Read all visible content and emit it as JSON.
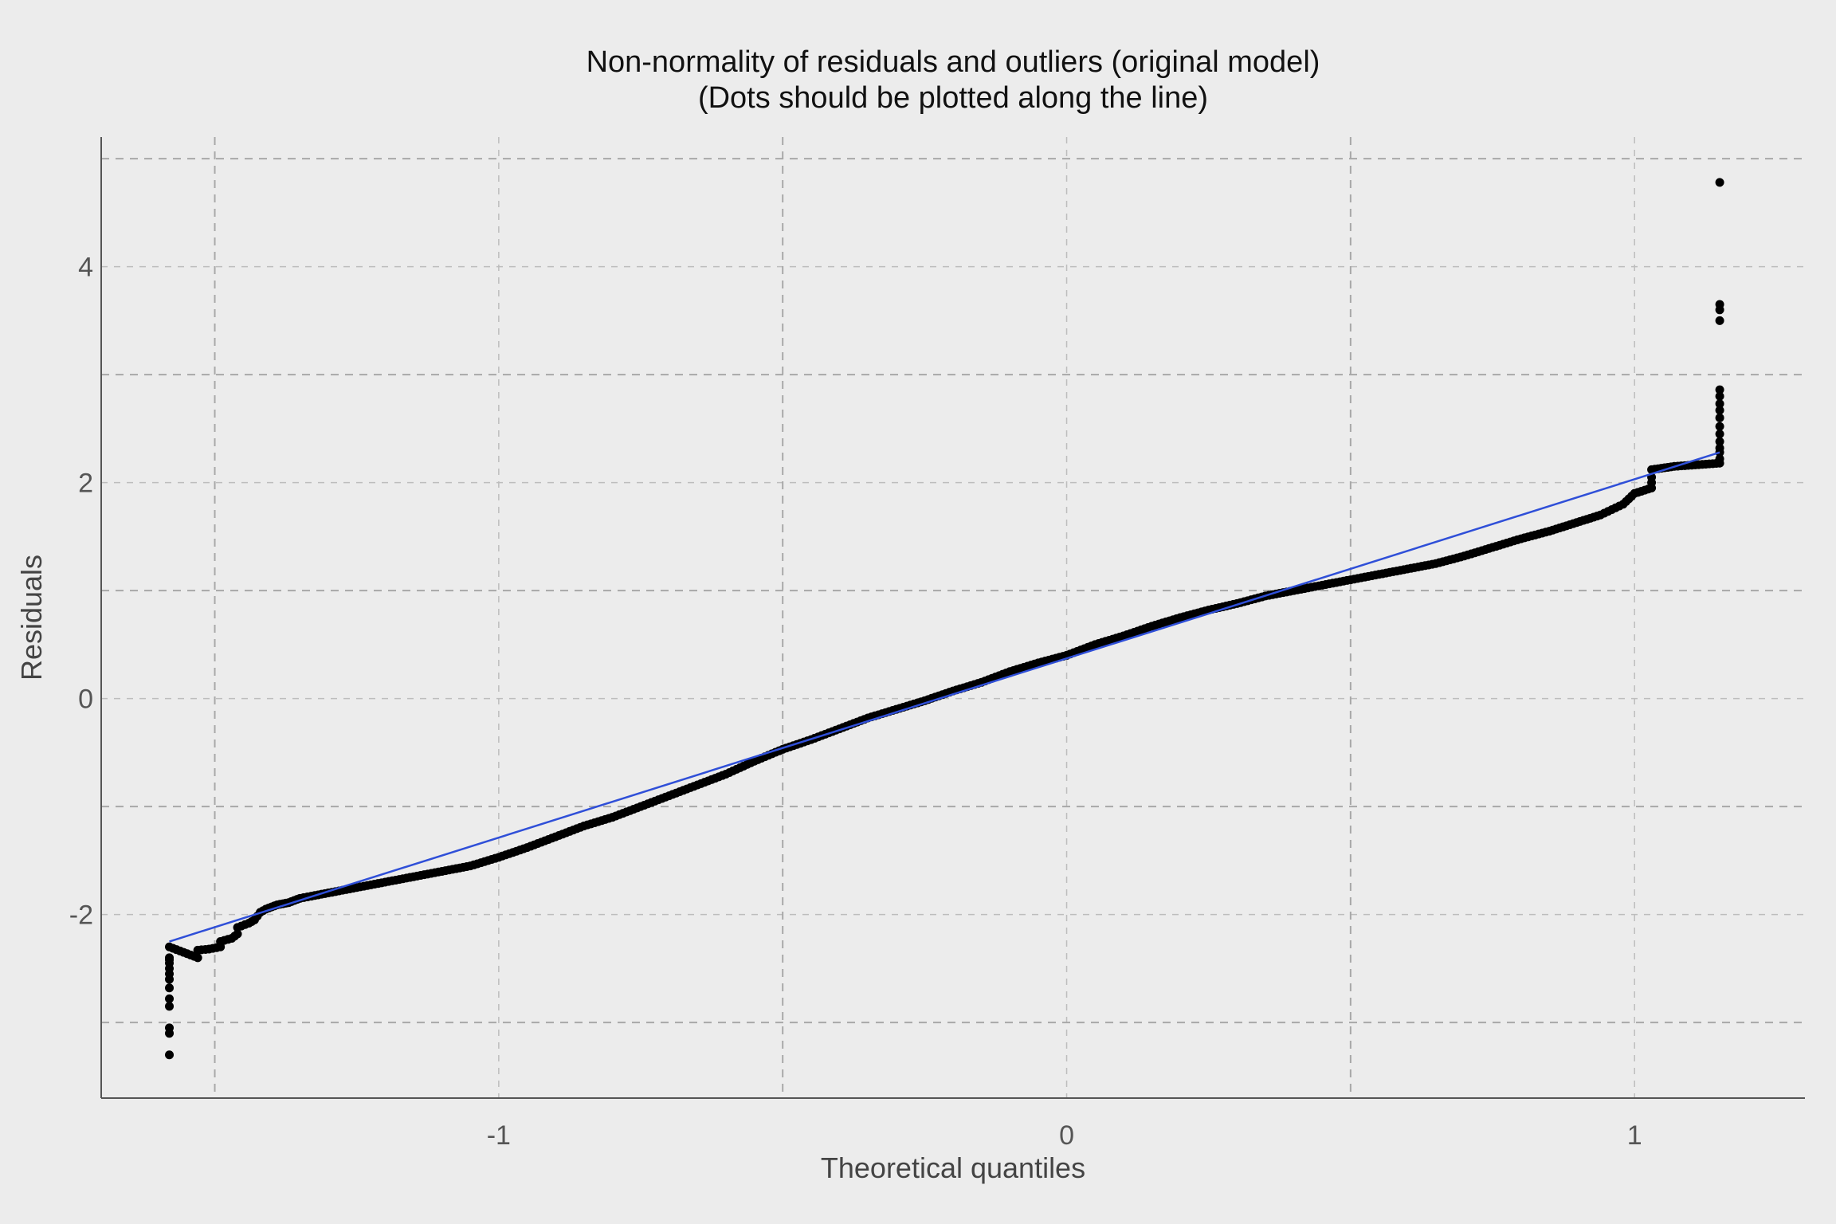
{
  "chart_data": {
    "type": "scatter",
    "title": "Non-normality of residuals and outliers (original model)",
    "subtitle": "(Dots should be plotted along the line)",
    "xlabel": "Theoretical quantiles",
    "ylabel": "Residuals",
    "xlim": [
      -1.7,
      1.3
    ],
    "ylim": [
      -3.7,
      5.2
    ],
    "x_ticks": [
      -1,
      0,
      1
    ],
    "x_tick_labels": [
      "-1",
      "0",
      "1"
    ],
    "y_ticks": [
      -2,
      0,
      2,
      4
    ],
    "y_tick_labels": [
      "-2",
      "0",
      "2",
      "4"
    ],
    "x_minor_gridlines": [
      -1.5,
      -0.5,
      0.5
    ],
    "y_minor_gridlines": [
      -3,
      -1,
      1,
      3,
      5
    ],
    "grid": true,
    "colors": {
      "background": "#ececec",
      "points": "#000000",
      "reference_line": "#2f4fd8"
    },
    "reference_line": {
      "x": [
        -1.58,
        1.15
      ],
      "y": [
        -2.25,
        2.28
      ]
    },
    "series": [
      {
        "x": [
          -1.58,
          -1.58,
          -1.58,
          -1.58,
          -1.58,
          -1.58,
          -1.58,
          -1.58,
          -1.58,
          -1.58,
          -1.58,
          -1.58,
          -1.58,
          -1.53,
          -1.53,
          -1.51,
          -1.49,
          -1.49,
          -1.47,
          -1.46,
          -1.46,
          -1.44,
          -1.43,
          -1.42,
          -1.41,
          -1.4,
          -1.39,
          -1.38,
          -1.37,
          -1.36,
          -1.35,
          -1.33,
          -1.3,
          -1.25,
          -1.2,
          -1.15,
          -1.1,
          -1.05,
          -1.0,
          -0.95,
          -0.9,
          -0.85,
          -0.8,
          -0.75,
          -0.7,
          -0.65,
          -0.6,
          -0.55,
          -0.5,
          -0.45,
          -0.4,
          -0.35,
          -0.3,
          -0.25,
          -0.2,
          -0.15,
          -0.1,
          -0.05,
          0.0,
          0.05,
          0.1,
          0.15,
          0.2,
          0.25,
          0.3,
          0.35,
          0.4,
          0.45,
          0.5,
          0.55,
          0.6,
          0.65,
          0.7,
          0.75,
          0.8,
          0.85,
          0.88,
          0.91,
          0.94,
          0.96,
          0.98,
          0.99,
          1.0,
          1.03,
          1.03,
          1.03,
          1.03,
          1.07,
          1.15,
          1.15,
          1.15,
          1.15,
          1.15,
          1.15,
          1.15,
          1.15,
          1.15,
          1.15,
          1.15,
          1.15,
          1.15,
          1.15,
          1.15,
          1.15
        ],
        "y": [
          -3.3,
          -3.1,
          -3.05,
          -2.85,
          -2.78,
          -2.68,
          -2.6,
          -2.55,
          -2.5,
          -2.45,
          -2.42,
          -2.4,
          -2.3,
          -2.4,
          -2.33,
          -2.32,
          -2.3,
          -2.25,
          -2.22,
          -2.18,
          -2.12,
          -2.08,
          -2.05,
          -1.98,
          -1.95,
          -1.93,
          -1.91,
          -1.9,
          -1.89,
          -1.87,
          -1.85,
          -1.83,
          -1.8,
          -1.75,
          -1.7,
          -1.65,
          -1.6,
          -1.55,
          -1.47,
          -1.38,
          -1.28,
          -1.18,
          -1.1,
          -1.0,
          -0.9,
          -0.8,
          -0.7,
          -0.58,
          -0.47,
          -0.38,
          -0.28,
          -0.18,
          -0.1,
          -0.02,
          0.07,
          0.15,
          0.25,
          0.33,
          0.4,
          0.5,
          0.58,
          0.67,
          0.75,
          0.82,
          0.88,
          0.95,
          1.0,
          1.05,
          1.1,
          1.15,
          1.2,
          1.25,
          1.32,
          1.4,
          1.48,
          1.55,
          1.6,
          1.65,
          1.7,
          1.75,
          1.8,
          1.85,
          1.9,
          1.95,
          2.0,
          2.05,
          2.12,
          2.15,
          2.18,
          2.22,
          2.28,
          2.32,
          2.38,
          2.45,
          2.52,
          2.6,
          2.67,
          2.73,
          2.8,
          2.86,
          3.5,
          3.6,
          3.65,
          4.78
        ]
      }
    ]
  }
}
